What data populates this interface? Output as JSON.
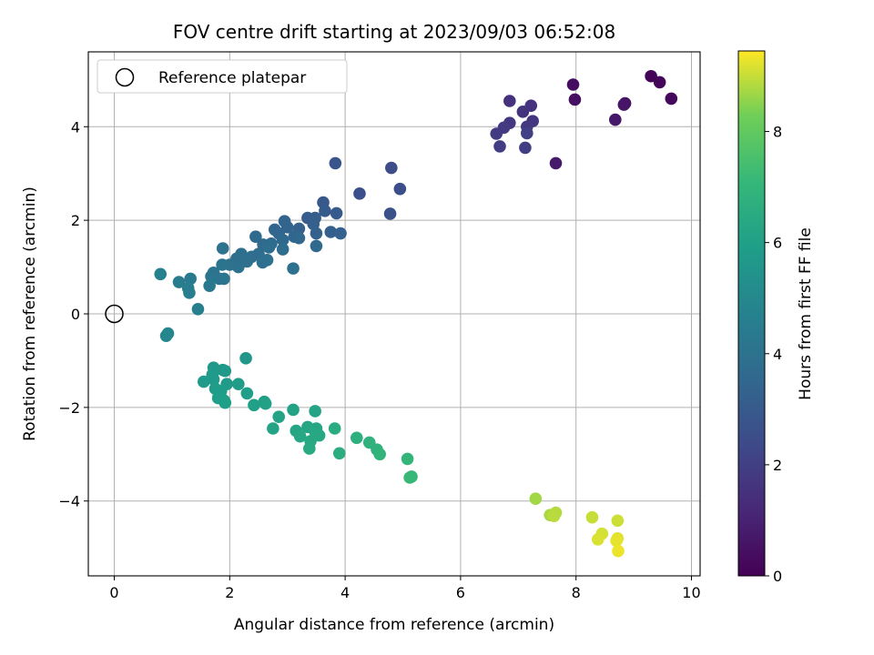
{
  "chart_data": {
    "type": "scatter",
    "title": "FOV centre drift starting at 2023/09/03 06:52:08",
    "xlabel": "Angular distance from reference (arcmin)",
    "ylabel": "Rotation from reference (arcmin)",
    "xlim": [
      -0.45,
      10.15
    ],
    "ylim": [
      -5.6,
      5.6
    ],
    "xticks": [
      "0",
      "2",
      "4",
      "6",
      "8",
      "10"
    ],
    "xtick_values": [
      0,
      2,
      4,
      6,
      8,
      10
    ],
    "yticks": [
      "−4",
      "−2",
      "0",
      "2",
      "4"
    ],
    "ytick_values": [
      -4,
      -2,
      0,
      2,
      4
    ],
    "grid": true,
    "legend": {
      "position": "top-left",
      "entries": [
        "Reference platepar"
      ]
    },
    "reference_point": {
      "x": 0,
      "y": 0
    },
    "colorbar": {
      "label": "Hours from first FF file",
      "range": [
        0,
        9.45
      ],
      "ticks": [
        "0",
        "2",
        "4",
        "6",
        "8"
      ],
      "tick_values": [
        0,
        2,
        4,
        6,
        8
      ],
      "colormap": "viridis"
    },
    "points": [
      {
        "x": 9.3,
        "y": 5.08,
        "h": 0.05
      },
      {
        "x": 9.45,
        "y": 4.95,
        "h": 0.15
      },
      {
        "x": 9.65,
        "y": 4.6,
        "h": 0.25
      },
      {
        "x": 7.95,
        "y": 4.9,
        "h": 0.35
      },
      {
        "x": 7.98,
        "y": 4.58,
        "h": 0.45
      },
      {
        "x": 8.85,
        "y": 4.5,
        "h": 0.55
      },
      {
        "x": 8.83,
        "y": 4.47,
        "h": 0.6
      },
      {
        "x": 8.68,
        "y": 4.15,
        "h": 0.7
      },
      {
        "x": 7.65,
        "y": 3.22,
        "h": 0.8
      },
      {
        "x": 6.85,
        "y": 4.55,
        "h": 1.5
      },
      {
        "x": 7.22,
        "y": 4.45,
        "h": 1.55
      },
      {
        "x": 7.08,
        "y": 4.32,
        "h": 1.6
      },
      {
        "x": 7.25,
        "y": 4.12,
        "h": 1.65
      },
      {
        "x": 6.85,
        "y": 4.08,
        "h": 1.7
      },
      {
        "x": 7.15,
        "y": 4.0,
        "h": 1.75
      },
      {
        "x": 6.75,
        "y": 3.98,
        "h": 1.8
      },
      {
        "x": 6.62,
        "y": 3.85,
        "h": 1.85
      },
      {
        "x": 6.68,
        "y": 3.58,
        "h": 1.9
      },
      {
        "x": 7.12,
        "y": 3.55,
        "h": 1.95
      },
      {
        "x": 7.15,
        "y": 3.86,
        "h": 2.0
      },
      {
        "x": 4.8,
        "y": 3.12,
        "h": 2.5
      },
      {
        "x": 4.95,
        "y": 2.67,
        "h": 2.55
      },
      {
        "x": 4.25,
        "y": 2.57,
        "h": 2.6
      },
      {
        "x": 4.78,
        "y": 2.14,
        "h": 2.65
      },
      {
        "x": 3.83,
        "y": 3.22,
        "h": 2.8
      },
      {
        "x": 3.62,
        "y": 2.38,
        "h": 2.9
      },
      {
        "x": 3.65,
        "y": 2.2,
        "h": 3.0
      },
      {
        "x": 3.85,
        "y": 2.15,
        "h": 3.0
      },
      {
        "x": 3.48,
        "y": 2.05,
        "h": 3.1
      },
      {
        "x": 3.35,
        "y": 2.05,
        "h": 3.1
      },
      {
        "x": 3.45,
        "y": 1.92,
        "h": 3.2
      },
      {
        "x": 3.75,
        "y": 1.75,
        "h": 3.2
      },
      {
        "x": 3.92,
        "y": 1.72,
        "h": 3.25
      },
      {
        "x": 3.5,
        "y": 1.72,
        "h": 3.3
      },
      {
        "x": 3.2,
        "y": 1.82,
        "h": 3.3
      },
      {
        "x": 2.95,
        "y": 1.98,
        "h": 3.4
      },
      {
        "x": 3.0,
        "y": 1.85,
        "h": 3.4
      },
      {
        "x": 2.78,
        "y": 1.8,
        "h": 3.5
      },
      {
        "x": 2.85,
        "y": 1.72,
        "h": 3.5
      },
      {
        "x": 3.12,
        "y": 1.65,
        "h": 3.5
      },
      {
        "x": 3.2,
        "y": 1.62,
        "h": 3.55
      },
      {
        "x": 3.5,
        "y": 1.45,
        "h": 3.6
      },
      {
        "x": 2.92,
        "y": 1.58,
        "h": 3.6
      },
      {
        "x": 2.72,
        "y": 1.5,
        "h": 3.65
      },
      {
        "x": 2.58,
        "y": 1.48,
        "h": 3.7
      },
      {
        "x": 2.45,
        "y": 1.65,
        "h": 3.7
      },
      {
        "x": 2.68,
        "y": 1.42,
        "h": 3.75
      },
      {
        "x": 2.92,
        "y": 1.38,
        "h": 3.75
      },
      {
        "x": 2.5,
        "y": 1.28,
        "h": 3.8
      },
      {
        "x": 2.38,
        "y": 1.22,
        "h": 3.8
      },
      {
        "x": 2.2,
        "y": 1.28,
        "h": 3.85
      },
      {
        "x": 2.12,
        "y": 1.18,
        "h": 3.85
      },
      {
        "x": 2.3,
        "y": 1.12,
        "h": 3.9
      },
      {
        "x": 2.65,
        "y": 1.15,
        "h": 3.9
      },
      {
        "x": 2.57,
        "y": 1.1,
        "h": 3.9
      },
      {
        "x": 2.0,
        "y": 1.05,
        "h": 3.95
      },
      {
        "x": 2.15,
        "y": 1.0,
        "h": 3.95
      },
      {
        "x": 3.1,
        "y": 0.97,
        "h": 3.95
      },
      {
        "x": 1.88,
        "y": 1.4,
        "h": 4.0
      },
      {
        "x": 1.87,
        "y": 1.05,
        "h": 4.05
      },
      {
        "x": 1.72,
        "y": 0.88,
        "h": 4.1
      },
      {
        "x": 1.68,
        "y": 0.8,
        "h": 4.15
      },
      {
        "x": 1.9,
        "y": 0.75,
        "h": 4.2
      },
      {
        "x": 1.82,
        "y": 0.75,
        "h": 4.2
      },
      {
        "x": 1.65,
        "y": 0.6,
        "h": 4.25
      },
      {
        "x": 1.32,
        "y": 0.75,
        "h": 4.35
      },
      {
        "x": 1.12,
        "y": 0.68,
        "h": 4.45
      },
      {
        "x": 1.28,
        "y": 0.55,
        "h": 4.5
      },
      {
        "x": 1.3,
        "y": 0.45,
        "h": 4.55
      },
      {
        "x": 1.45,
        "y": 0.1,
        "h": 4.6
      },
      {
        "x": 0.8,
        "y": 0.85,
        "h": 4.65
      },
      {
        "x": 0.93,
        "y": -0.42,
        "h": 4.85
      },
      {
        "x": 0.9,
        "y": -0.47,
        "h": 4.9
      },
      {
        "x": 2.28,
        "y": -0.95,
        "h": 5.6
      },
      {
        "x": 1.72,
        "y": -1.15,
        "h": 5.65
      },
      {
        "x": 1.88,
        "y": -1.2,
        "h": 5.7
      },
      {
        "x": 1.92,
        "y": -1.22,
        "h": 5.7
      },
      {
        "x": 1.7,
        "y": -1.3,
        "h": 5.75
      },
      {
        "x": 1.72,
        "y": -1.4,
        "h": 5.75
      },
      {
        "x": 1.55,
        "y": -1.45,
        "h": 5.8
      },
      {
        "x": 1.95,
        "y": -1.5,
        "h": 5.8
      },
      {
        "x": 2.15,
        "y": -1.5,
        "h": 5.85
      },
      {
        "x": 1.75,
        "y": -1.6,
        "h": 5.85
      },
      {
        "x": 1.85,
        "y": -1.65,
        "h": 5.85
      },
      {
        "x": 2.3,
        "y": -1.7,
        "h": 5.9
      },
      {
        "x": 1.8,
        "y": -1.8,
        "h": 5.9
      },
      {
        "x": 1.9,
        "y": -1.85,
        "h": 5.95
      },
      {
        "x": 1.92,
        "y": -1.9,
        "h": 5.95
      },
      {
        "x": 2.42,
        "y": -1.95,
        "h": 6.0
      },
      {
        "x": 2.6,
        "y": -1.88,
        "h": 6.0
      },
      {
        "x": 2.62,
        "y": -1.92,
        "h": 6.05
      },
      {
        "x": 3.1,
        "y": -2.05,
        "h": 6.1
      },
      {
        "x": 3.48,
        "y": -2.08,
        "h": 6.15
      },
      {
        "x": 2.85,
        "y": -2.2,
        "h": 6.2
      },
      {
        "x": 2.75,
        "y": -2.45,
        "h": 6.2
      },
      {
        "x": 3.15,
        "y": -2.5,
        "h": 6.25
      },
      {
        "x": 3.35,
        "y": -2.42,
        "h": 6.3
      },
      {
        "x": 3.5,
        "y": -2.45,
        "h": 6.3
      },
      {
        "x": 3.48,
        "y": -2.52,
        "h": 6.35
      },
      {
        "x": 3.22,
        "y": -2.62,
        "h": 6.35
      },
      {
        "x": 3.4,
        "y": -2.72,
        "h": 6.4
      },
      {
        "x": 3.55,
        "y": -2.6,
        "h": 6.4
      },
      {
        "x": 3.38,
        "y": -2.88,
        "h": 6.45
      },
      {
        "x": 3.82,
        "y": -2.45,
        "h": 6.5
      },
      {
        "x": 3.9,
        "y": -2.98,
        "h": 6.6
      },
      {
        "x": 4.2,
        "y": -2.65,
        "h": 6.7
      },
      {
        "x": 4.42,
        "y": -2.75,
        "h": 6.8
      },
      {
        "x": 4.55,
        "y": -2.9,
        "h": 6.85
      },
      {
        "x": 4.6,
        "y": -3.0,
        "h": 6.9
      },
      {
        "x": 5.08,
        "y": -3.1,
        "h": 7.0
      },
      {
        "x": 5.15,
        "y": -3.48,
        "h": 7.1
      },
      {
        "x": 5.12,
        "y": -3.5,
        "h": 7.15
      },
      {
        "x": 7.3,
        "y": -3.95,
        "h": 8.7
      },
      {
        "x": 7.55,
        "y": -4.3,
        "h": 8.75
      },
      {
        "x": 7.6,
        "y": -4.3,
        "h": 8.8
      },
      {
        "x": 7.65,
        "y": -4.25,
        "h": 8.85
      },
      {
        "x": 7.62,
        "y": -4.32,
        "h": 8.9
      },
      {
        "x": 8.28,
        "y": -4.35,
        "h": 9.0
      },
      {
        "x": 8.72,
        "y": -4.42,
        "h": 9.05
      },
      {
        "x": 8.45,
        "y": -4.7,
        "h": 9.1
      },
      {
        "x": 8.38,
        "y": -4.82,
        "h": 9.15
      },
      {
        "x": 8.72,
        "y": -4.8,
        "h": 9.2
      },
      {
        "x": 8.7,
        "y": -4.85,
        "h": 9.25
      },
      {
        "x": 8.73,
        "y": -5.07,
        "h": 9.3
      }
    ]
  }
}
